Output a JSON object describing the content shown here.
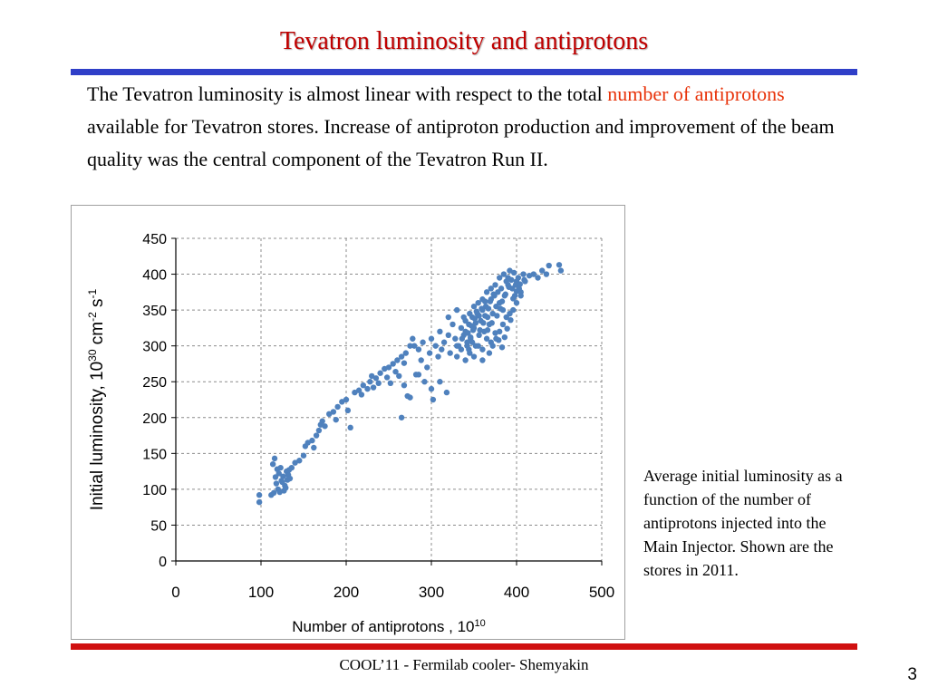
{
  "slide": {
    "title": "Tevatron luminosity and antiprotons",
    "intro_part1": "The Tevatron luminosity is almost linear with respect to the total ",
    "intro_highlight": "number of antiprotons",
    "intro_part2": " available for Tevatron stores. Increase of antiproton production  and improvement of the beam quality was the central component of the Tevatron Run II.",
    "caption": "Average initial luminosity as a function of the number of antiprotons injected into  the Main Injector. Shown are the stores in 2011.",
    "footer": "COOL’11 - Fermilab cooler- Shemyakin",
    "page_number": "3"
  },
  "colors": {
    "title": "#c00000",
    "highlight": "#e8330a",
    "top_bar": "#2f3fc8",
    "bottom_bar": "#d01010",
    "marker": "#4f81bd"
  },
  "chart_data": {
    "type": "scatter",
    "xlabel": "Number of antiprotons , 10",
    "xlabel_sup": "10",
    "ylabel": "Initial luminosity, 10",
    "ylabel_sup1": "30",
    "ylabel_mid": " cm",
    "ylabel_sup2": "-2",
    "ylabel_mid2": " s",
    "ylabel_sup3": "-1",
    "xlim": [
      0,
      500
    ],
    "ylim": [
      0,
      450
    ],
    "xticks": [
      "0",
      "100",
      "200",
      "300",
      "400",
      "500"
    ],
    "yticks": [
      "0",
      "50",
      "100",
      "150",
      "200",
      "250",
      "300",
      "350",
      "400",
      "450"
    ],
    "grid": "dashed",
    "legend": "none",
    "series": [
      {
        "points": [
          [
            98,
            82
          ],
          [
            98,
            92
          ],
          [
            112,
            92
          ],
          [
            115,
            95
          ],
          [
            118,
            108
          ],
          [
            120,
            100
          ],
          [
            122,
            96
          ],
          [
            124,
            112
          ],
          [
            126,
            118
          ],
          [
            128,
            105
          ],
          [
            130,
            125
          ],
          [
            132,
            120
          ],
          [
            134,
            115
          ],
          [
            114,
            135
          ],
          [
            116,
            143
          ],
          [
            119,
            128
          ],
          [
            121,
            122
          ],
          [
            123,
            130
          ],
          [
            125,
            110
          ],
          [
            127,
            98
          ],
          [
            129,
            102
          ],
          [
            131,
            113
          ],
          [
            133,
            127
          ],
          [
            136,
            130
          ],
          [
            117,
            117
          ],
          [
            140,
            137
          ],
          [
            145,
            140
          ],
          [
            150,
            147
          ],
          [
            152,
            160
          ],
          [
            155,
            165
          ],
          [
            160,
            168
          ],
          [
            162,
            158
          ],
          [
            165,
            175
          ],
          [
            168,
            182
          ],
          [
            170,
            190
          ],
          [
            172,
            195
          ],
          [
            175,
            188
          ],
          [
            180,
            205
          ],
          [
            185,
            208
          ],
          [
            188,
            197
          ],
          [
            190,
            215
          ],
          [
            195,
            222
          ],
          [
            200,
            225
          ],
          [
            202,
            210
          ],
          [
            205,
            186
          ],
          [
            210,
            235
          ],
          [
            215,
            238
          ],
          [
            218,
            232
          ],
          [
            220,
            245
          ],
          [
            225,
            240
          ],
          [
            228,
            250
          ],
          [
            230,
            258
          ],
          [
            232,
            242
          ],
          [
            235,
            255
          ],
          [
            238,
            248
          ],
          [
            240,
            262
          ],
          [
            245,
            268
          ],
          [
            248,
            256
          ],
          [
            250,
            270
          ],
          [
            252,
            248
          ],
          [
            255,
            275
          ],
          [
            258,
            264
          ],
          [
            260,
            280
          ],
          [
            262,
            258
          ],
          [
            265,
            285
          ],
          [
            268,
            276
          ],
          [
            270,
            290
          ],
          [
            272,
            230
          ],
          [
            275,
            228
          ],
          [
            278,
            310
          ],
          [
            280,
            300
          ],
          [
            282,
            260
          ],
          [
            285,
            295
          ],
          [
            288,
            280
          ],
          [
            290,
            305
          ],
          [
            292,
            250
          ],
          [
            295,
            270
          ],
          [
            298,
            290
          ],
          [
            300,
            310
          ],
          [
            302,
            225
          ],
          [
            305,
            300
          ],
          [
            308,
            285
          ],
          [
            310,
            320
          ],
          [
            312,
            295
          ],
          [
            315,
            305
          ],
          [
            318,
            235
          ],
          [
            320,
            315
          ],
          [
            322,
            290
          ],
          [
            325,
            330
          ],
          [
            328,
            310
          ],
          [
            330,
            300
          ],
          [
            265,
            200
          ],
          [
            268,
            245
          ],
          [
            275,
            300
          ],
          [
            285,
            260
          ],
          [
            300,
            240
          ],
          [
            310,
            250
          ],
          [
            320,
            340
          ],
          [
            330,
            350
          ],
          [
            335,
            295
          ],
          [
            338,
            315
          ],
          [
            340,
            320
          ],
          [
            342,
            305
          ],
          [
            344,
            330
          ],
          [
            346,
            310
          ],
          [
            348,
            340
          ],
          [
            350,
            325
          ],
          [
            352,
            300
          ],
          [
            354,
            345
          ],
          [
            356,
            315
          ],
          [
            358,
            335
          ],
          [
            360,
            350
          ],
          [
            362,
            320
          ],
          [
            364,
            355
          ],
          [
            366,
            340
          ],
          [
            368,
            330
          ],
          [
            370,
            365
          ],
          [
            372,
            345
          ],
          [
            374,
            370
          ],
          [
            376,
            355
          ],
          [
            378,
            375
          ],
          [
            380,
            360
          ],
          [
            382,
            380
          ],
          [
            384,
            350
          ],
          [
            386,
            370
          ],
          [
            388,
            390
          ],
          [
            390,
            385
          ],
          [
            345,
            290
          ],
          [
            350,
            285
          ],
          [
            355,
            300
          ],
          [
            360,
            295
          ],
          [
            365,
            310
          ],
          [
            370,
            305
          ],
          [
            340,
            335
          ],
          [
            345,
            345
          ],
          [
            350,
            355
          ],
          [
            355,
            360
          ],
          [
            360,
            365
          ],
          [
            365,
            375
          ],
          [
            370,
            380
          ],
          [
            375,
            385
          ],
          [
            380,
            395
          ],
          [
            385,
            400
          ],
          [
            390,
            395
          ],
          [
            392,
            405
          ],
          [
            395,
            380
          ],
          [
            398,
            370
          ],
          [
            400,
            390
          ],
          [
            402,
            395
          ],
          [
            405,
            375
          ],
          [
            408,
            400
          ],
          [
            360,
            280
          ],
          [
            368,
            290
          ],
          [
            372,
            300
          ],
          [
            376,
            310
          ],
          [
            380,
            320
          ],
          [
            384,
            330
          ],
          [
            388,
            340
          ],
          [
            392,
            345
          ],
          [
            396,
            350
          ],
          [
            400,
            360
          ],
          [
            335,
            325
          ],
          [
            338,
            340
          ],
          [
            343,
            318
          ],
          [
            347,
            328
          ],
          [
            351,
            338
          ],
          [
            353,
            348
          ],
          [
            357,
            322
          ],
          [
            361,
            332
          ],
          [
            363,
            342
          ],
          [
            367,
            352
          ],
          [
            369,
            362
          ],
          [
            373,
            372
          ],
          [
            377,
            342
          ],
          [
            381,
            352
          ],
          [
            383,
            362
          ],
          [
            387,
            372
          ],
          [
            391,
            382
          ],
          [
            394,
            392
          ],
          [
            397,
            402
          ],
          [
            399,
            385
          ],
          [
            342,
            300
          ],
          [
            346,
            312
          ],
          [
            349,
            322
          ],
          [
            352,
            332
          ],
          [
            356,
            342
          ],
          [
            359,
            352
          ],
          [
            363,
            362
          ],
          [
            366,
            322
          ],
          [
            371,
            332
          ],
          [
            375,
            318
          ],
          [
            379,
            308
          ],
          [
            383,
            298
          ],
          [
            386,
            312
          ],
          [
            389,
            324
          ],
          [
            393,
            336
          ],
          [
            396,
            366
          ],
          [
            400,
            376
          ],
          [
            404,
            386
          ],
          [
            330,
            285
          ],
          [
            332,
            300
          ],
          [
            336,
            310
          ],
          [
            340,
            280
          ],
          [
            344,
            295
          ],
          [
            348,
            305
          ],
          [
            420,
            400
          ],
          [
            425,
            395
          ],
          [
            430,
            405
          ],
          [
            435,
            400
          ],
          [
            438,
            412
          ],
          [
            450,
            413
          ],
          [
            452,
            405
          ],
          [
            415,
            398
          ],
          [
            410,
            390
          ],
          [
            405,
            370
          ],
          [
            403,
            380
          ],
          [
            409,
            392
          ]
        ]
      }
    ]
  }
}
